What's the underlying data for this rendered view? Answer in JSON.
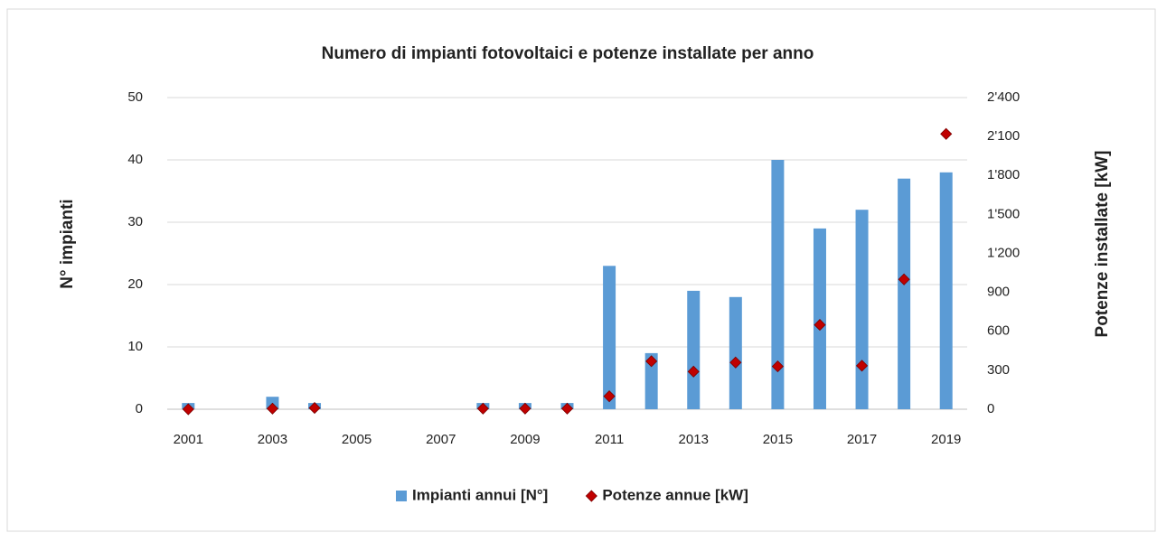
{
  "chart_data": {
    "type": "bar",
    "title": "Numero di impianti fotovoltaici e potenze installate per anno",
    "ylabel": "N° impianti",
    "y2label": "Potenze installate [kW]",
    "categories": [
      "2001",
      null,
      "2003",
      null,
      "2005",
      null,
      "2007",
      null,
      "2009",
      null,
      "2011",
      null,
      "2013",
      null,
      "2015",
      null,
      "2017",
      null,
      "2019"
    ],
    "series": [
      {
        "name": "Impianti annui [N°]",
        "type": "bar",
        "color": "#5b9bd5",
        "values": [
          1,
          0,
          2,
          1,
          0,
          0,
          0,
          1,
          1,
          1,
          23,
          9,
          19,
          18,
          40,
          29,
          32,
          37,
          38
        ]
      },
      {
        "name": "Potenze annue [kW]",
        "type": "scatter",
        "color": "#c00000",
        "axis": "y2",
        "values": [
          0,
          null,
          5,
          10,
          null,
          null,
          null,
          5,
          5,
          5,
          100,
          370,
          290,
          360,
          330,
          650,
          335,
          1000,
          2120
        ]
      }
    ],
    "ylim": [
      0,
      50
    ],
    "yticks": [
      0,
      10,
      20,
      30,
      40,
      50
    ],
    "y2lim": [
      0,
      2400
    ],
    "y2ticks": [
      0,
      {
        "value": 300,
        "label": "300"
      },
      {
        "value": 600,
        "label": "600"
      },
      {
        "value": 900,
        "label": "900"
      },
      {
        "value": 1200,
        "label": "1'200"
      },
      {
        "value": 1500,
        "label": "1'500"
      },
      {
        "value": 1800,
        "label": "1'800"
      },
      {
        "value": 2100,
        "label": "2'100"
      },
      {
        "value": 2400,
        "label": "2'400"
      }
    ],
    "grid": true,
    "legend": "bottom"
  }
}
